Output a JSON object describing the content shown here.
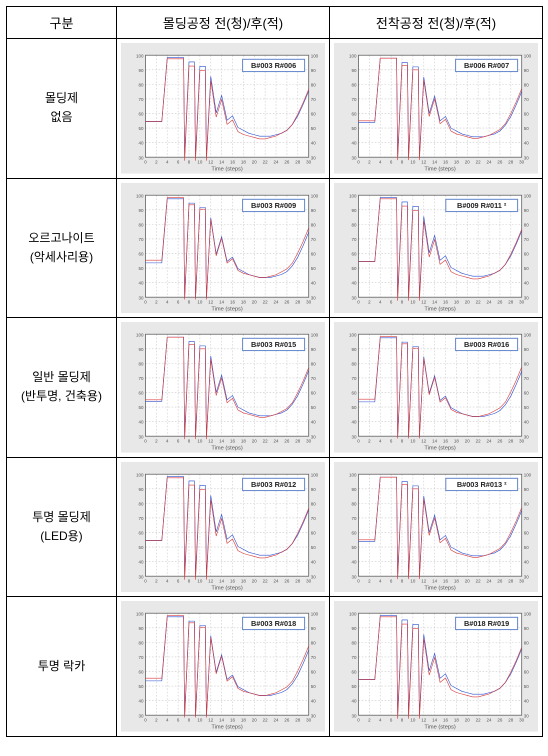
{
  "table": {
    "header": {
      "category": "구분",
      "col1": "몰딩공정 전(청)/후(적)",
      "col2": "전착공정 전(청)/후(적)"
    },
    "rows": [
      {
        "label_lines": [
          "몰딩제",
          "없음"
        ]
      },
      {
        "label_lines": [
          "오르고나이트",
          "(악세사리용)"
        ]
      },
      {
        "label_lines": [
          "일반 몰딩제",
          "(반투명, 건축용)"
        ]
      },
      {
        "label_lines": [
          "투명 몰딩제",
          "(LED용)"
        ]
      },
      {
        "label_lines": [
          "투명 락카"
        ]
      }
    ]
  },
  "chart_style": {
    "colors": {
      "series_before": "#2a4fd0",
      "series_after": "#d83a3a",
      "background": "#e8e8e8",
      "plot_bg": "#ffffff",
      "grid": "#cccccc",
      "border": "#666666",
      "annot_border": "#6688cc"
    },
    "xlim": [
      0,
      30
    ],
    "xtick_step": 2,
    "ylim": [
      30,
      100
    ],
    "ytick_step": 10,
    "xlabel": "Time (steps)",
    "annot_fontsize": 3.6,
    "axis_fontsize": 2.2
  },
  "charts": [
    [
      {
        "annot": "B#003 R#006"
      },
      {
        "annot": "B#006 R#007"
      }
    ],
    [
      {
        "annot": "B#003 R#009"
      },
      {
        "annot": "B#009 R#011 ²"
      }
    ],
    [
      {
        "annot": "B#003 R#015"
      },
      {
        "annot": "B#003 R#016"
      }
    ],
    [
      {
        "annot": "B#003 R#012"
      },
      {
        "annot": "B#003 R#013 ²"
      }
    ],
    [
      {
        "annot": "B#003 R#018"
      },
      {
        "annot": "B#018 R#019"
      }
    ]
  ],
  "series_templates": {
    "x": [
      0,
      1,
      2,
      3,
      4,
      5,
      6,
      7,
      7.2,
      8,
      9,
      9.2,
      10,
      11,
      11.2,
      12,
      13,
      14,
      15,
      16,
      17,
      18,
      19,
      20,
      21,
      22,
      23,
      24,
      25,
      26,
      27,
      28,
      29,
      30
    ],
    "before": [
      54,
      54,
      54,
      54,
      98,
      98,
      98,
      98,
      30,
      95,
      95,
      30,
      92,
      92,
      30,
      85,
      60,
      72,
      55,
      58,
      50,
      48,
      46,
      45,
      44,
      44,
      44,
      45,
      46,
      48,
      52,
      58,
      66,
      75
    ],
    "after": [
      55,
      55,
      55,
      55,
      98,
      98,
      98,
      98,
      28,
      93,
      93,
      28,
      90,
      90,
      28,
      83,
      58,
      70,
      53,
      56,
      48,
      46,
      45,
      44,
      43,
      43,
      44,
      45,
      47,
      49,
      53,
      60,
      68,
      77
    ]
  }
}
